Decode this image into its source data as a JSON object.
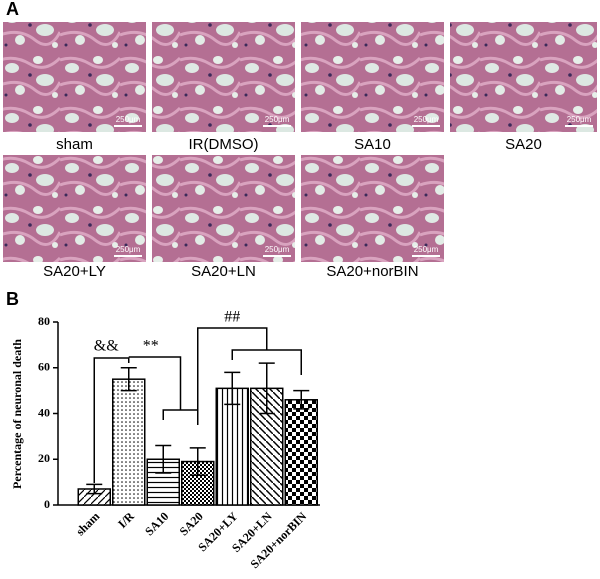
{
  "panels": {
    "a": "A",
    "b": "B"
  },
  "images": [
    {
      "label": "sham",
      "scale": "250μm"
    },
    {
      "label": "IR(DMSO)",
      "scale": "250μm"
    },
    {
      "label": "SA10",
      "scale": "250μm"
    },
    {
      "label": "SA20",
      "scale": "250μm"
    },
    {
      "label": "SA20+LY",
      "scale": "250μm"
    },
    {
      "label": "SA20+LN",
      "scale": "250μm"
    },
    {
      "label": "SA20+norBIN",
      "scale": "250μm"
    }
  ],
  "chart_data": {
    "type": "bar",
    "ylabel": "Percentage of neuronal death",
    "categories": [
      "sham",
      "I/R",
      "SA10",
      "SA20",
      "SA20+LY",
      "SA20+LN",
      "SA20+norBIN"
    ],
    "values": [
      7,
      55,
      20,
      19,
      51,
      51,
      46
    ],
    "errors": [
      2,
      5,
      6,
      6,
      7,
      11,
      4
    ],
    "ylim": [
      0,
      80
    ],
    "yticks": [
      0,
      20,
      40,
      60,
      80
    ],
    "annotations": [
      "&&",
      "**",
      "##"
    ]
  }
}
